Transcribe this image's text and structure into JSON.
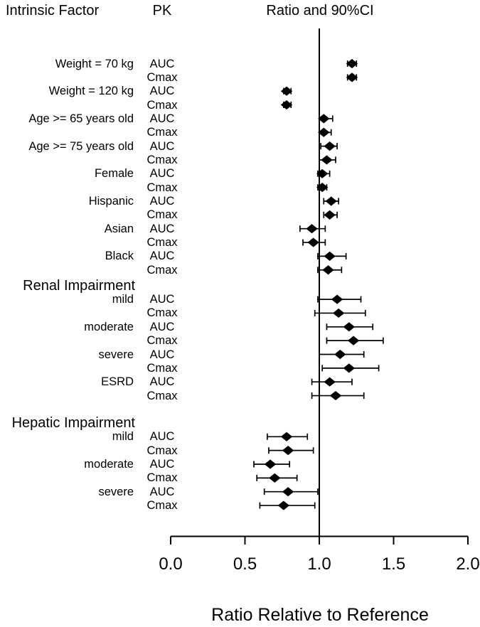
{
  "chart_data": {
    "type": "scatter",
    "style": "forest-plot",
    "title": "Ratio and 90%CI",
    "columns": {
      "factor": "Intrinsic Factor",
      "pk": "PK"
    },
    "xlabel": "Ratio Relative to Reference",
    "xlim": [
      0,
      2
    ],
    "xticks": [
      0,
      0.5,
      1,
      1.5,
      2
    ],
    "xtick_labels": [
      "0.0",
      "0.5",
      "1.0",
      "1.5",
      "2.0"
    ],
    "reference_line": 1.0,
    "ci_level": "90%",
    "marker": "diamond",
    "color": "#000000",
    "background": "#ffffff",
    "sections": [
      {
        "header": "",
        "rows": [
          {
            "factor": "Weight = 70 kg",
            "pk": "AUC",
            "ratio": 1.22,
            "ci_low": 1.19,
            "ci_high": 1.25
          },
          {
            "factor": "",
            "pk": "Cmax",
            "ratio": 1.22,
            "ci_low": 1.19,
            "ci_high": 1.25
          },
          {
            "factor": "Weight = 120 kg",
            "pk": "AUC",
            "ratio": 0.78,
            "ci_low": 0.76,
            "ci_high": 0.81
          },
          {
            "factor": "",
            "pk": "Cmax",
            "ratio": 0.78,
            "ci_low": 0.76,
            "ci_high": 0.81
          },
          {
            "factor": "Age >= 65 years old",
            "pk": "AUC",
            "ratio": 1.03,
            "ci_low": 1.0,
            "ci_high": 1.09
          },
          {
            "factor": "",
            "pk": "Cmax",
            "ratio": 1.03,
            "ci_low": 1.0,
            "ci_high": 1.08
          },
          {
            "factor": "Age >= 75 years old",
            "pk": "AUC",
            "ratio": 1.07,
            "ci_low": 1.01,
            "ci_high": 1.12
          },
          {
            "factor": "",
            "pk": "Cmax",
            "ratio": 1.05,
            "ci_low": 1.0,
            "ci_high": 1.11
          },
          {
            "factor": "Female",
            "pk": "AUC",
            "ratio": 1.02,
            "ci_low": 0.99,
            "ci_high": 1.07
          },
          {
            "factor": "",
            "pk": "Cmax",
            "ratio": 1.02,
            "ci_low": 0.99,
            "ci_high": 1.05
          },
          {
            "factor": "Hispanic",
            "pk": "AUC",
            "ratio": 1.08,
            "ci_low": 1.03,
            "ci_high": 1.13
          },
          {
            "factor": "",
            "pk": "Cmax",
            "ratio": 1.07,
            "ci_low": 1.03,
            "ci_high": 1.12
          },
          {
            "factor": "Asian",
            "pk": "AUC",
            "ratio": 0.95,
            "ci_low": 0.87,
            "ci_high": 1.04
          },
          {
            "factor": "",
            "pk": "Cmax",
            "ratio": 0.96,
            "ci_low": 0.89,
            "ci_high": 1.04
          },
          {
            "factor": "Black",
            "pk": "AUC",
            "ratio": 1.07,
            "ci_low": 0.99,
            "ci_high": 1.18
          },
          {
            "factor": "",
            "pk": "Cmax",
            "ratio": 1.06,
            "ci_low": 0.99,
            "ci_high": 1.15
          }
        ]
      },
      {
        "header": "Renal Impairment",
        "rows": [
          {
            "factor": "mild",
            "pk": "AUC",
            "ratio": 1.12,
            "ci_low": 0.99,
            "ci_high": 1.28
          },
          {
            "factor": "",
            "pk": "Cmax",
            "ratio": 1.13,
            "ci_low": 0.97,
            "ci_high": 1.31
          },
          {
            "factor": "moderate",
            "pk": "AUC",
            "ratio": 1.2,
            "ci_low": 1.05,
            "ci_high": 1.36
          },
          {
            "factor": "",
            "pk": "Cmax",
            "ratio": 1.23,
            "ci_low": 1.05,
            "ci_high": 1.43
          },
          {
            "factor": "severe",
            "pk": "AUC",
            "ratio": 1.14,
            "ci_low": 1.0,
            "ci_high": 1.3
          },
          {
            "factor": "",
            "pk": "Cmax",
            "ratio": 1.2,
            "ci_low": 1.02,
            "ci_high": 1.4
          },
          {
            "factor": "ESRD",
            "pk": "AUC",
            "ratio": 1.07,
            "ci_low": 0.95,
            "ci_high": 1.22
          },
          {
            "factor": "",
            "pk": "Cmax",
            "ratio": 1.11,
            "ci_low": 0.95,
            "ci_high": 1.3
          }
        ]
      },
      {
        "header": "Hepatic Impairment",
        "rows": [
          {
            "factor": "mild",
            "pk": "AUC",
            "ratio": 0.78,
            "ci_low": 0.65,
            "ci_high": 0.92
          },
          {
            "factor": "",
            "pk": "Cmax",
            "ratio": 0.79,
            "ci_low": 0.66,
            "ci_high": 0.96
          },
          {
            "factor": "moderate",
            "pk": "AUC",
            "ratio": 0.67,
            "ci_low": 0.56,
            "ci_high": 0.8
          },
          {
            "factor": "",
            "pk": "Cmax",
            "ratio": 0.7,
            "ci_low": 0.58,
            "ci_high": 0.85
          },
          {
            "factor": "severe",
            "pk": "AUC",
            "ratio": 0.79,
            "ci_low": 0.63,
            "ci_high": 0.99
          },
          {
            "factor": "",
            "pk": "Cmax",
            "ratio": 0.76,
            "ci_low": 0.6,
            "ci_high": 0.97
          }
        ]
      }
    ]
  }
}
